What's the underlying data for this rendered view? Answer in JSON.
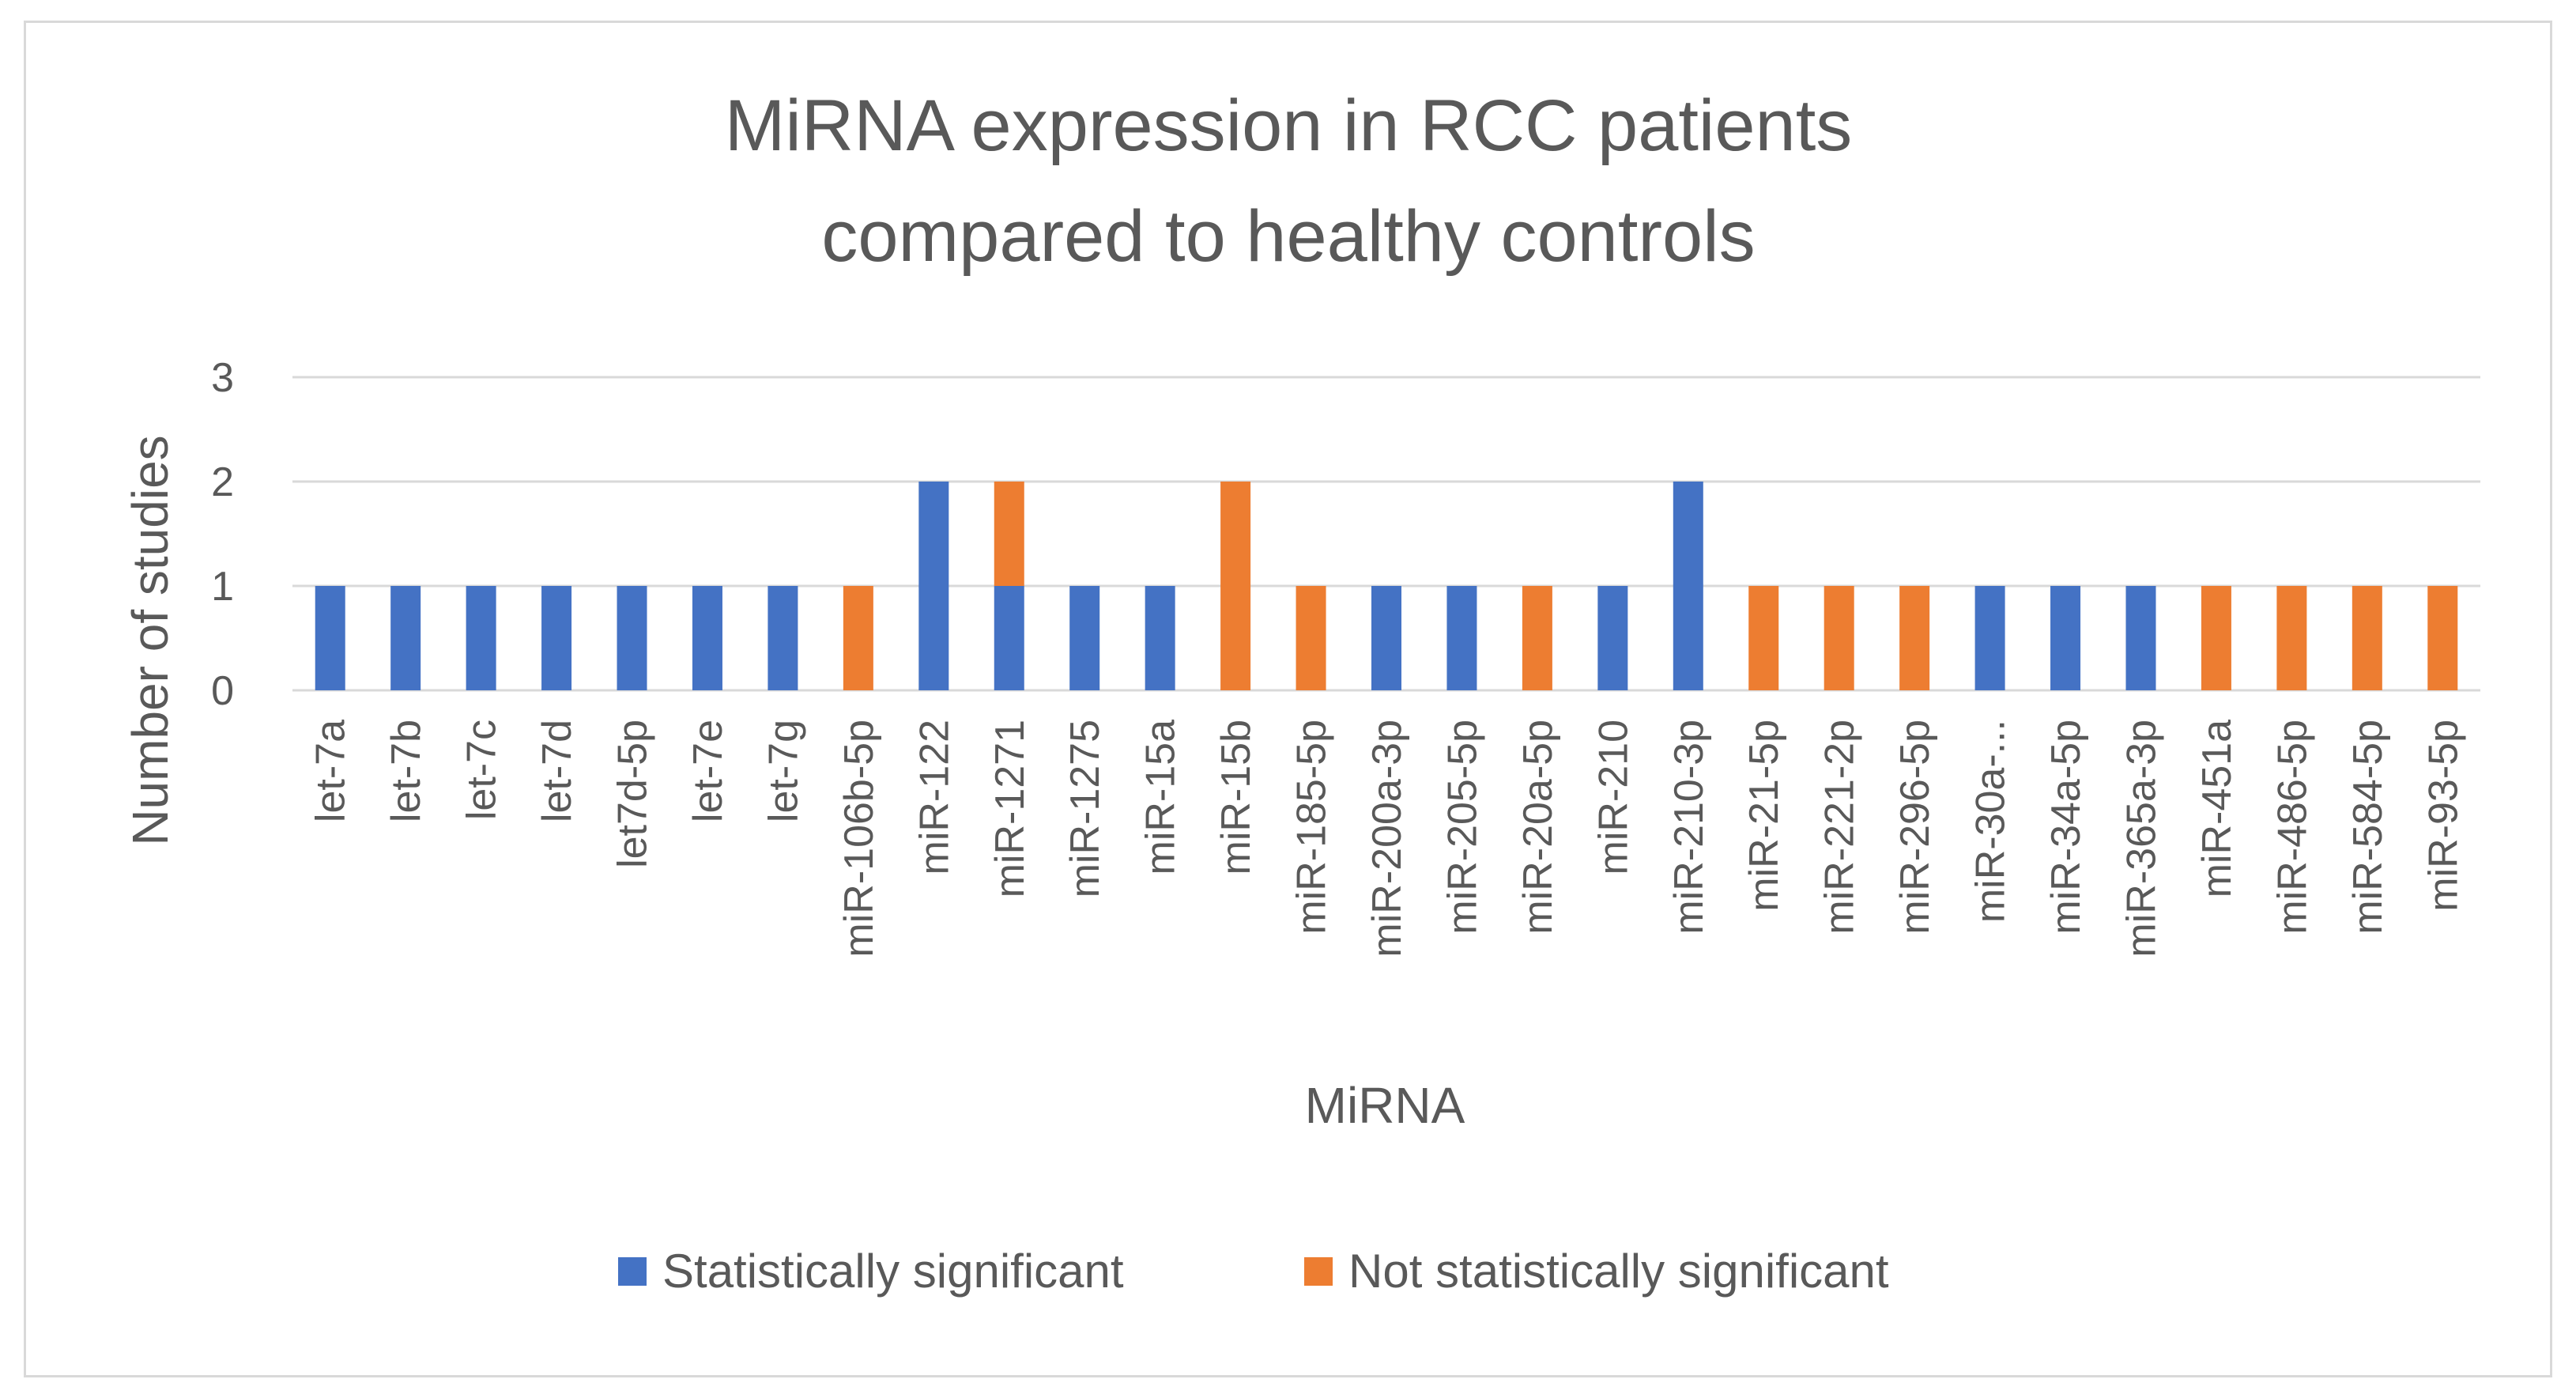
{
  "chart_data": {
    "type": "bar",
    "stacked": true,
    "title_lines": [
      "MiRNA expression in RCC patients",
      "compared to healthy controls"
    ],
    "xlabel": "MiRNA",
    "ylabel": "Number of studies",
    "ylim": [
      0,
      3
    ],
    "yticks": [
      0,
      1,
      2,
      3
    ],
    "grid": true,
    "legend_position": "bottom",
    "categories": [
      "let-7a",
      "let-7b",
      "let-7c",
      "let-7d",
      "let7d-5p",
      "let-7e",
      "let-7g",
      "miR-106b-5p",
      "miR-122",
      "miR-1271",
      "miR-1275",
      "miR-15a",
      "miR-15b",
      "miR-185-5p",
      "miR-200a-3p",
      "miR-205-5p",
      "miR-20a-5p",
      "miR-210",
      "miR-210-3p",
      "miR-21-5p",
      "miR-221-2p",
      "miR-296-5p",
      "miR-30a-...",
      "miR-34a-5p",
      "miR-365a-3p",
      "miR-451a",
      "miR-486-5p",
      "miR-584-5p",
      "miR-93-5p"
    ],
    "series": [
      {
        "name": "Statistically significant",
        "color": "#4472c4",
        "values": [
          1,
          1,
          1,
          1,
          1,
          1,
          1,
          0,
          2,
          1,
          1,
          1,
          0,
          0,
          1,
          1,
          0,
          1,
          2,
          0,
          0,
          0,
          1,
          1,
          1,
          0,
          0,
          0,
          0
        ]
      },
      {
        "name": "Not statistically significant",
        "color": "#ed7d31",
        "values": [
          0,
          0,
          0,
          0,
          0,
          0,
          0,
          1,
          0,
          1,
          0,
          0,
          2,
          1,
          0,
          0,
          1,
          0,
          0,
          1,
          1,
          1,
          0,
          0,
          0,
          1,
          1,
          1,
          1
        ]
      }
    ]
  }
}
